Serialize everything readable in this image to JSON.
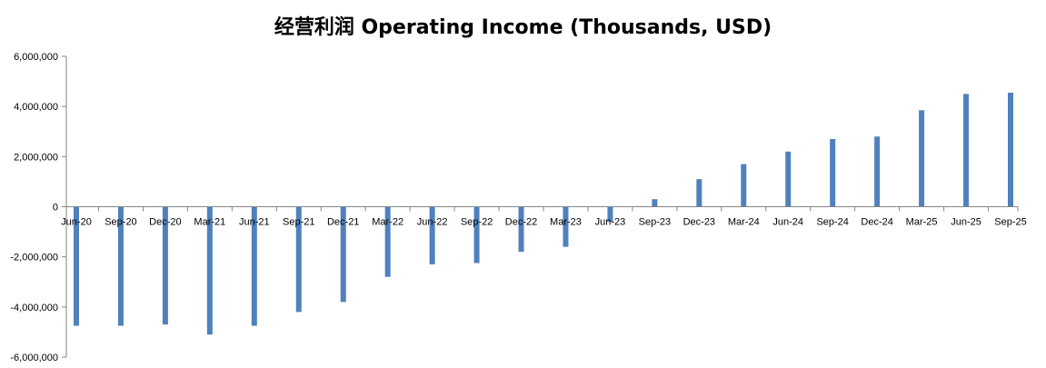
{
  "chart_data": {
    "type": "bar",
    "title": "经营利润 Operating Income (Thousands, USD)",
    "xlabel": "",
    "ylabel": "",
    "ylim": [
      -6000000,
      6000000
    ],
    "yticks": [
      6000000,
      4000000,
      2000000,
      0,
      -2000000,
      -4000000,
      -6000000
    ],
    "ytick_labels": [
      "6,000,000",
      "4,000,000",
      "2,000,000",
      "0",
      "-2,000,000",
      "-4,000,000",
      "-6,000,000"
    ],
    "grid": false,
    "legend": "none",
    "bar_color": "#4F81BD",
    "categories": [
      "Jun-20",
      "Sep-20",
      "Dec-20",
      "Mar-21",
      "Jun-21",
      "Sep-21",
      "Dec-21",
      "Mar-22",
      "Jun-22",
      "Sep-22",
      "Dec-22",
      "Mar-23",
      "Jun-23",
      "Sep-23",
      "Dec-23",
      "Mar-24",
      "Jun-24",
      "Sep-24",
      "Dec-24",
      "Mar-25",
      "Jun-25",
      "Sep-25"
    ],
    "values": [
      -4750000,
      -4750000,
      -4700000,
      -5100000,
      -4750000,
      -4200000,
      -3800000,
      -2800000,
      -2300000,
      -2250000,
      -1800000,
      -1600000,
      -600000,
      300000,
      1100000,
      1700000,
      2200000,
      2700000,
      2800000,
      3850000,
      4500000,
      4550000
    ]
  }
}
